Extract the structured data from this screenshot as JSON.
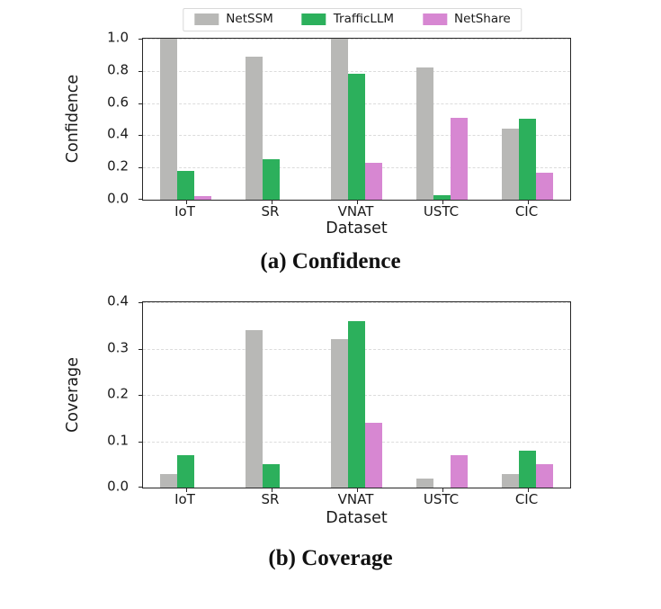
{
  "figure": {
    "background": "#ffffff",
    "text_color": "#1a1a1a",
    "spine_color": "#262626",
    "gridline_color": "#dcdcdc"
  },
  "legend": {
    "items": [
      {
        "label": "NetSSM",
        "color": "#b8b8b6"
      },
      {
        "label": "TrafficLLM",
        "color": "#2cb05c"
      },
      {
        "label": "NetShare",
        "color": "#d787d2"
      }
    ]
  },
  "chart_data": [
    {
      "type": "bar",
      "caption": "(a) Confidence",
      "xlabel": "Dataset",
      "ylabel": "Confidence",
      "categories": [
        "IoT",
        "SR",
        "VNAT",
        "USTC",
        "CIC"
      ],
      "series": [
        {
          "name": "NetSSM",
          "color": "#b8b8b6",
          "values": [
            1.0,
            0.89,
            1.0,
            0.82,
            0.44
          ]
        },
        {
          "name": "TrafficLLM",
          "color": "#2cb05c",
          "values": [
            0.18,
            0.25,
            0.78,
            0.03,
            0.5
          ]
        },
        {
          "name": "NetShare",
          "color": "#d787d2",
          "values": [
            0.02,
            0.0,
            0.23,
            0.51,
            0.17
          ]
        }
      ],
      "ylim": [
        0,
        1.0
      ],
      "yticks": [
        0.0,
        0.2,
        0.4,
        0.6,
        0.8,
        1.0
      ],
      "grid": true,
      "grid_style": "dashed-horizontal",
      "legend_position": "top-center"
    },
    {
      "type": "bar",
      "caption": "(b) Coverage",
      "xlabel": "Dataset",
      "ylabel": "Coverage",
      "categories": [
        "IoT",
        "SR",
        "VNAT",
        "USTC",
        "CIC"
      ],
      "series": [
        {
          "name": "NetSSM",
          "color": "#b8b8b6",
          "values": [
            0.03,
            0.34,
            0.32,
            0.02,
            0.03
          ]
        },
        {
          "name": "TrafficLLM",
          "color": "#2cb05c",
          "values": [
            0.07,
            0.05,
            0.36,
            0.0,
            0.08
          ]
        },
        {
          "name": "NetShare",
          "color": "#d787d2",
          "values": [
            0.0,
            0.0,
            0.14,
            0.07,
            0.05
          ]
        }
      ],
      "ylim": [
        0,
        0.4
      ],
      "yticks": [
        0.0,
        0.1,
        0.2,
        0.3,
        0.4
      ],
      "grid": true,
      "grid_style": "dashed-horizontal",
      "legend_position": "top-center"
    }
  ]
}
